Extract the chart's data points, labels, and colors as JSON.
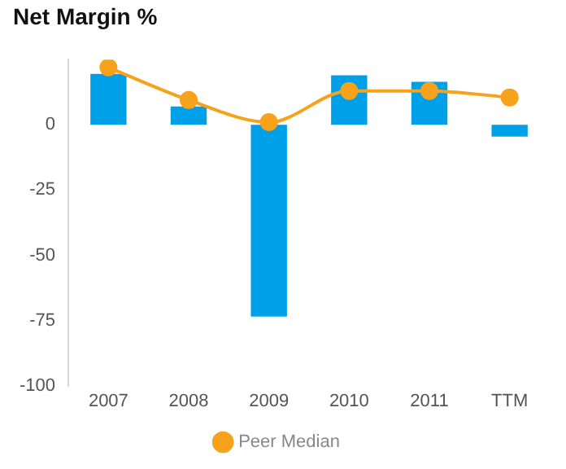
{
  "chart_data": {
    "type": "bar",
    "title": "Net Margin %",
    "categories": [
      "2007",
      "2008",
      "2009",
      "2010",
      "2011",
      "TTM"
    ],
    "series": [
      {
        "color": "#00a0e9",
        "values": [
          19.5,
          7,
          -73.5,
          19,
          16.5,
          -4.5
        ]
      },
      {
        "type": "line",
        "name": "Peer Median",
        "color": "#f7a21b",
        "values": [
          22,
          9.5,
          1,
          13,
          13,
          10.5
        ]
      }
    ],
    "ylim": [
      -100,
      25
    ],
    "yticks": [
      -100,
      -75,
      -50,
      -25,
      0
    ],
    "grid": false,
    "legend": "bottom",
    "marker": "circle"
  }
}
